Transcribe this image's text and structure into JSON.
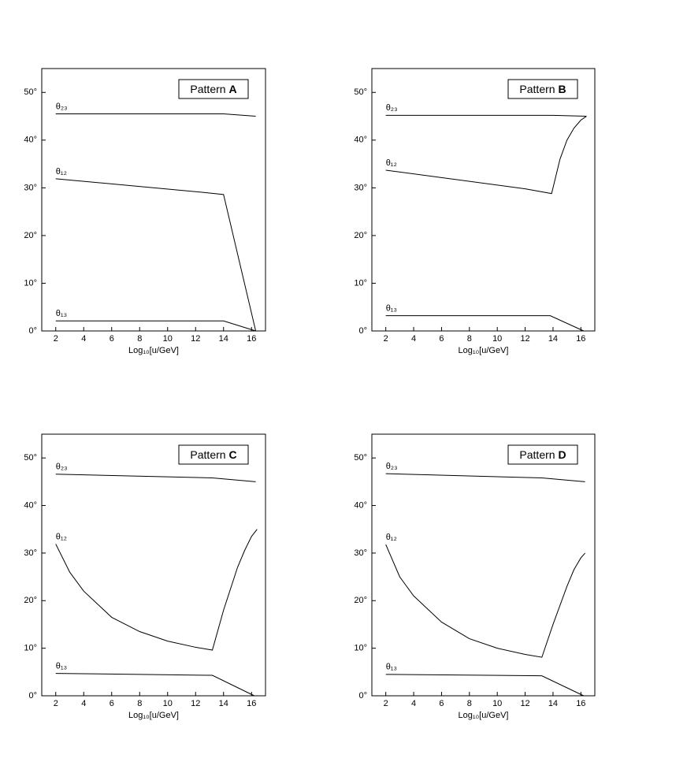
{
  "chart_data": [
    {
      "type": "line",
      "title": "Pattern",
      "title_letter": "A",
      "xlabel": "Log₁₀[u/GeV]",
      "xlim": [
        1,
        17
      ],
      "xticks": [
        2,
        4,
        6,
        8,
        10,
        12,
        14,
        16
      ],
      "ylim": [
        0,
        55
      ],
      "yticks": [
        {
          "value": 0,
          "label": "0°"
        },
        {
          "value": 10,
          "label": "10°"
        },
        {
          "value": 20,
          "label": "20°"
        },
        {
          "value": 30,
          "label": "30°"
        },
        {
          "value": 40,
          "label": "40°"
        },
        {
          "value": 50,
          "label": "50°"
        }
      ],
      "series": [
        {
          "name": "θ₂₃",
          "color": "#000000",
          "x": [
            2,
            14,
            16.3
          ],
          "values": [
            45.5,
            45.5,
            45
          ]
        },
        {
          "name": "θ₁₂",
          "color": "#000000",
          "x": [
            2,
            12,
            14,
            16.3
          ],
          "values": [
            31.9,
            29.2,
            28.6,
            0
          ]
        },
        {
          "name": "θ₁₃",
          "color": "#000000",
          "x": [
            2,
            14,
            16.3
          ],
          "values": [
            2.1,
            2.1,
            0
          ]
        }
      ]
    },
    {
      "type": "line",
      "title": "Pattern",
      "title_letter": "B",
      "xlabel": "Log₁₀[u/GeV]",
      "xlim": [
        1,
        17
      ],
      "xticks": [
        2,
        4,
        6,
        8,
        10,
        12,
        14,
        16
      ],
      "ylim": [
        0,
        55
      ],
      "yticks": [
        {
          "value": 0,
          "label": "0°"
        },
        {
          "value": 10,
          "label": "10°"
        },
        {
          "value": 20,
          "label": "20°"
        },
        {
          "value": 30,
          "label": "30°"
        },
        {
          "value": 40,
          "label": "40°"
        },
        {
          "value": 50,
          "label": "50°"
        }
      ],
      "series": [
        {
          "name": "θ₂₃",
          "color": "#000000",
          "x": [
            2,
            14,
            16.4
          ],
          "values": [
            45.2,
            45.2,
            45
          ]
        },
        {
          "name": "θ₁₂",
          "color": "#000000",
          "x": [
            2,
            12,
            13.9,
            14.5,
            15,
            15.5,
            16,
            16.4
          ],
          "values": [
            33.7,
            29.8,
            28.8,
            36,
            40,
            42.5,
            44.2,
            45
          ]
        },
        {
          "name": "θ₁₃",
          "color": "#000000",
          "x": [
            2,
            13.8,
            16.2
          ],
          "values": [
            3.2,
            3.2,
            0
          ]
        }
      ]
    },
    {
      "type": "line",
      "title": "Pattern",
      "title_letter": "C",
      "xlabel": "Log₁₀[u/GeV]",
      "xlim": [
        1,
        17
      ],
      "xticks": [
        2,
        4,
        6,
        8,
        10,
        12,
        14,
        16
      ],
      "ylim": [
        0,
        55
      ],
      "yticks": [
        {
          "value": 0,
          "label": "0°"
        },
        {
          "value": 10,
          "label": "10°"
        },
        {
          "value": 20,
          "label": "20°"
        },
        {
          "value": 30,
          "label": "30°"
        },
        {
          "value": 40,
          "label": "40°"
        },
        {
          "value": 50,
          "label": "50°"
        }
      ],
      "series": [
        {
          "name": "θ₂₃",
          "color": "#000000",
          "x": [
            2,
            13.2,
            16.3
          ],
          "values": [
            46.6,
            45.8,
            45
          ]
        },
        {
          "name": "θ₁₂",
          "color": "#000000",
          "x": [
            2,
            3,
            4,
            6,
            8,
            10,
            12,
            13.2,
            14,
            15,
            15.5,
            16,
            16.4
          ],
          "values": [
            31.9,
            26,
            22,
            16.5,
            13.5,
            11.5,
            10.2,
            9.6,
            18,
            27,
            30.5,
            33.5,
            35
          ]
        },
        {
          "name": "θ₁₃",
          "color": "#000000",
          "x": [
            2,
            8,
            13.2,
            16.2
          ],
          "values": [
            4.7,
            4.5,
            4.3,
            0
          ]
        }
      ]
    },
    {
      "type": "line",
      "title": "Pattern",
      "title_letter": "D",
      "xlabel": "Log₁₀[u/GeV]",
      "xlim": [
        1,
        17
      ],
      "xticks": [
        2,
        4,
        6,
        8,
        10,
        12,
        14,
        16
      ],
      "ylim": [
        0,
        55
      ],
      "yticks": [
        {
          "value": 0,
          "label": "0°"
        },
        {
          "value": 10,
          "label": "10°"
        },
        {
          "value": 20,
          "label": "20°"
        },
        {
          "value": 30,
          "label": "30°"
        },
        {
          "value": 40,
          "label": "40°"
        },
        {
          "value": 50,
          "label": "50°"
        }
      ],
      "series": [
        {
          "name": "θ₂₃",
          "color": "#000000",
          "x": [
            2,
            13.2,
            16.3
          ],
          "values": [
            46.7,
            45.8,
            45
          ]
        },
        {
          "name": "θ₁₂",
          "color": "#000000",
          "x": [
            2,
            3,
            4,
            6,
            8,
            10,
            12,
            13.2,
            14,
            15,
            15.5,
            16,
            16.3
          ],
          "values": [
            31.8,
            25,
            21,
            15.5,
            12,
            10,
            8.7,
            8.1,
            15,
            23,
            26.5,
            29,
            30
          ]
        },
        {
          "name": "θ₁₃",
          "color": "#000000",
          "x": [
            2,
            13.2,
            16.2
          ],
          "values": [
            4.5,
            4.2,
            0
          ]
        }
      ]
    }
  ]
}
